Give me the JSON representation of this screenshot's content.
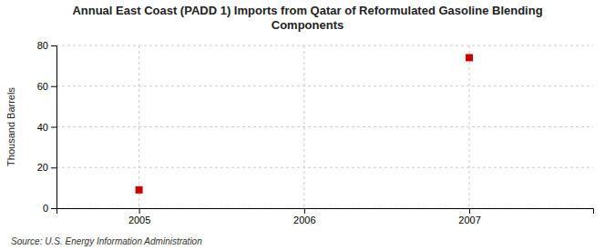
{
  "chart_data": {
    "type": "scatter",
    "title": "Annual East Coast (PADD 1) Imports from Qatar of Reformulated Gasoline Blending\nComponents",
    "y_label": "Thousand Barrels",
    "source": "Source: U.S. Energy Information Administration",
    "x": [
      2005,
      2007
    ],
    "values": [
      9,
      74
    ],
    "color": "#cc0000",
    "marker": "square",
    "xlim": [
      2004.5,
      2007.75
    ],
    "xticks": [
      2005,
      2006,
      2007
    ],
    "ylim": [
      0,
      80
    ],
    "yticks": [
      0,
      20,
      40,
      60,
      80
    ],
    "grid": true
  }
}
